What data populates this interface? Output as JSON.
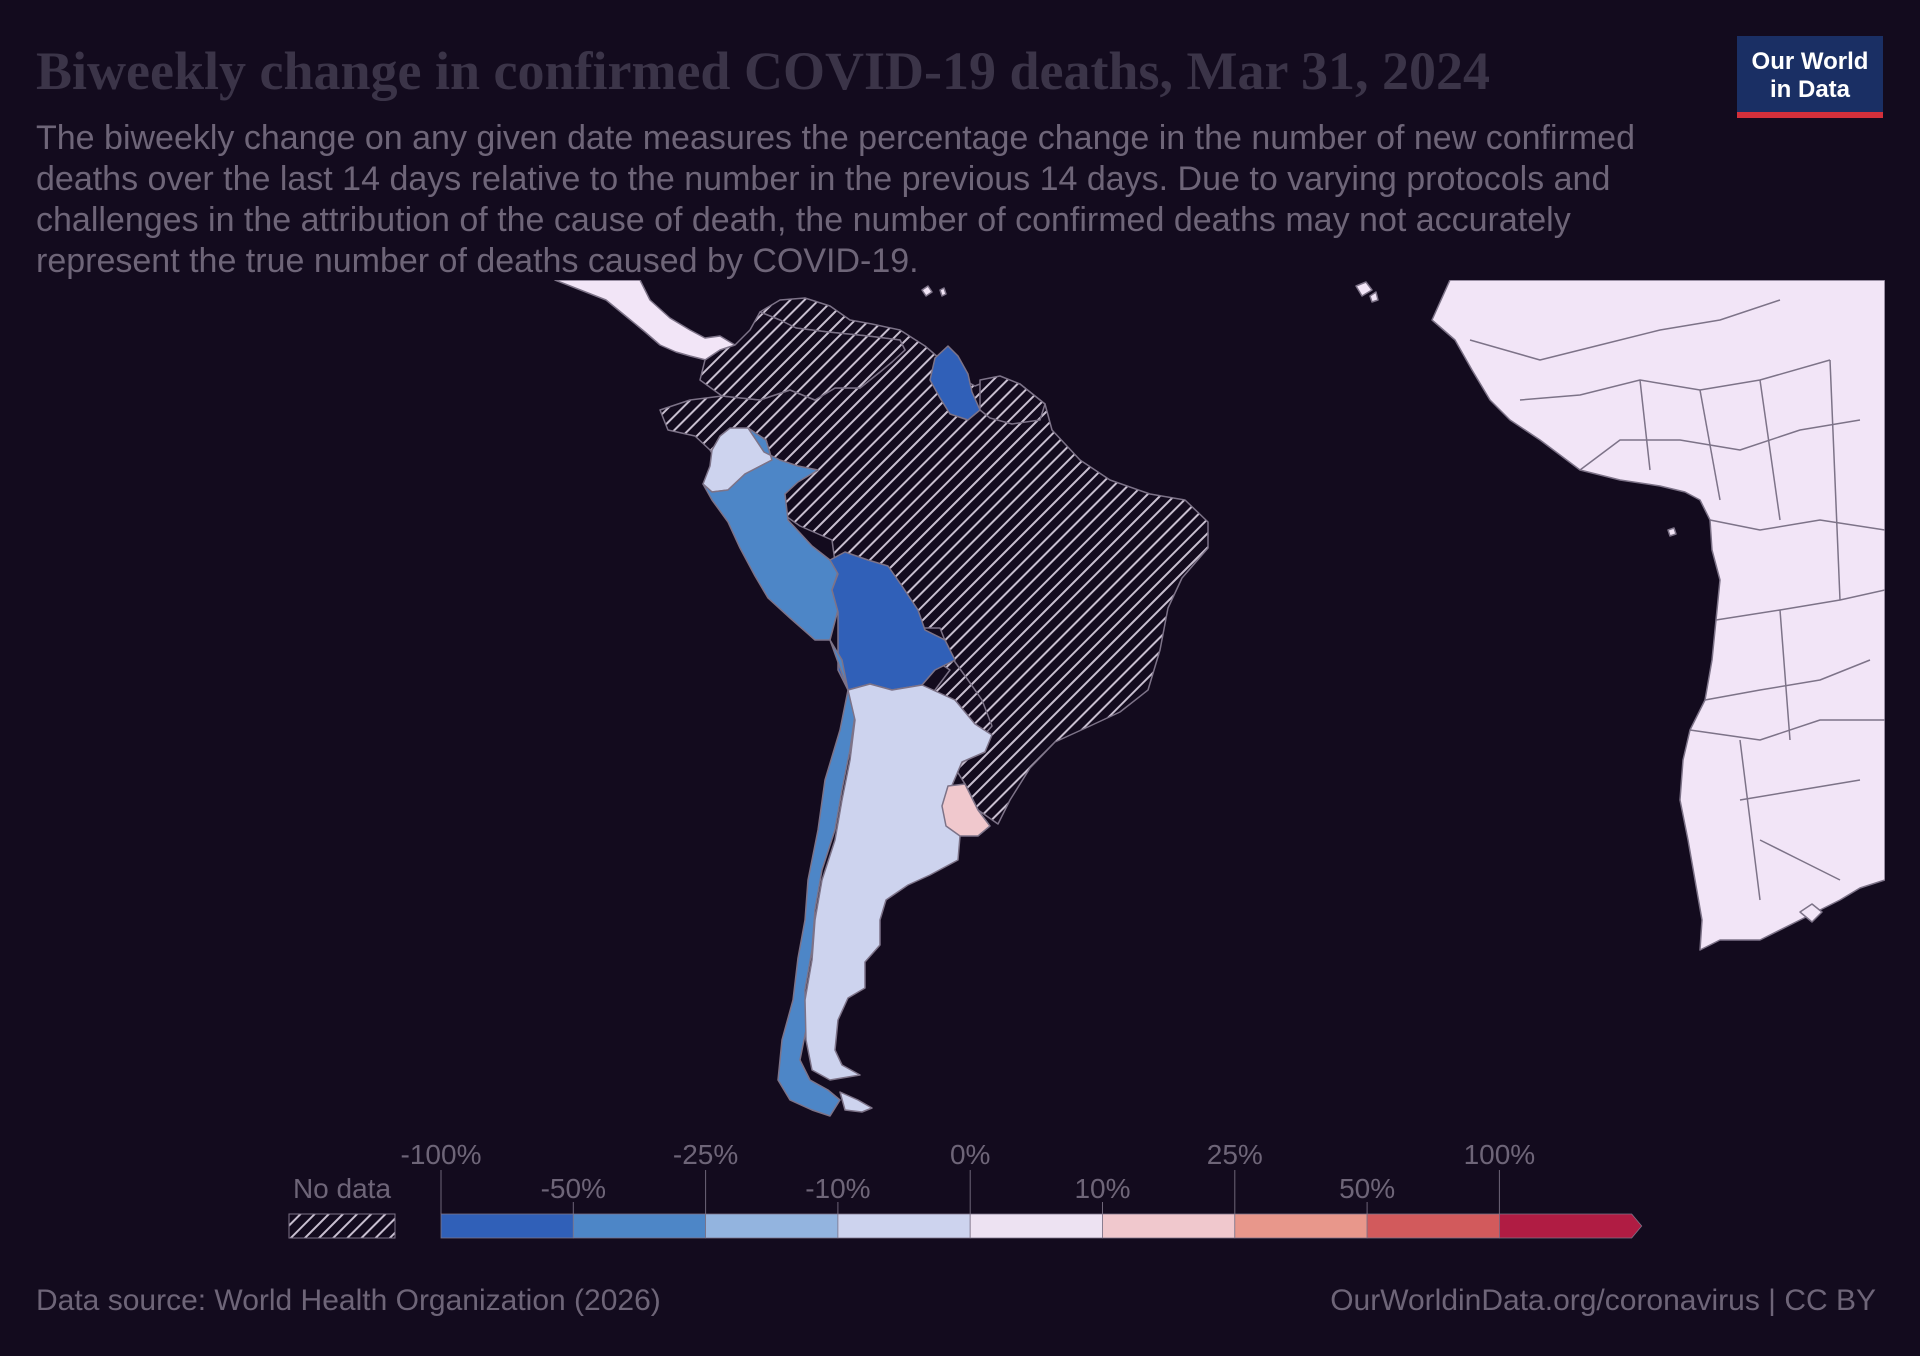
{
  "header": {
    "title": "Biweekly change in confirmed COVID-19 deaths, Mar 31, 2024",
    "subtitle": "The biweekly change on any given date measures the percentage change in the number of new confirmed deaths over the last 14 days relative to the number in the previous 14 days. Due to varying protocols and challenges in the attribution of the cause of death, the number of confirmed deaths may not accurately represent the true number of deaths caused by COVID-19."
  },
  "logo": {
    "line1": "Our World",
    "line2": "in Data"
  },
  "legend": {
    "no_data_label": "No data",
    "upper_ticks": [
      "-100%",
      "-25%",
      "0%",
      "25%",
      "100%"
    ],
    "lower_ticks": [
      "-50%",
      "-10%",
      "10%",
      "50%"
    ],
    "bin_colors": [
      "#3060b8",
      "#4d86c7",
      "#93b4df",
      "#cdd3ee",
      "#ede2f2",
      "#f0c8cd",
      "#e8978b",
      "#d25a5c",
      "#b01c43"
    ]
  },
  "colors": {
    "background": "#130b1e",
    "no_data_fill": "#f2e5f7",
    "hatch": "#c8bfd0",
    "border": "#7d7388"
  },
  "map_regions": [
    {
      "country": "Chile",
      "category": "-50%"
    },
    {
      "country": "Peru",
      "category": "-50%"
    },
    {
      "country": "Bolivia",
      "category": "-100%"
    },
    {
      "country": "Guyana",
      "category": "-100%"
    },
    {
      "country": "Argentina",
      "category": "-10%"
    },
    {
      "country": "Ecuador",
      "category": "-10%"
    },
    {
      "country": "Uruguay",
      "category": "25%"
    },
    {
      "country": "Brazil",
      "category": "No data"
    },
    {
      "country": "Colombia",
      "category": "No data"
    },
    {
      "country": "Venezuela",
      "category": "No data"
    },
    {
      "country": "Paraguay",
      "category": "No data"
    },
    {
      "country": "Suriname",
      "category": "No data"
    }
  ],
  "footer": {
    "source": "Data source: World Health Organization (2026)",
    "link": "OurWorldinData.org/coronavirus",
    "separator": "|",
    "license": "CC BY"
  }
}
